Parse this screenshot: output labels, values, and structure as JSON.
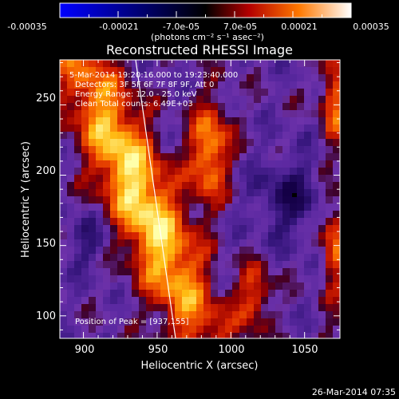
{
  "chart_data": {
    "type": "heatmap",
    "title": "Reconstructed RHESSI Image",
    "xlabel": "Heliocentric X (arcsec)",
    "ylabel": "Heliocentric Y (arcsec)",
    "xlim": [
      884,
      1074
    ],
    "ylim": [
      84,
      282
    ],
    "xticks": [
      "900",
      "950",
      "1000",
      "1050"
    ],
    "yticks": [
      "100",
      "150",
      "200",
      "250"
    ],
    "colorbar": {
      "ticks": [
        "-0.00035",
        "-0.00021",
        "-7.0e-05",
        "7.0e-05",
        "0.00021",
        "0.00035"
      ],
      "unit_label": "(photons cm⁻² s⁻¹ asec⁻²)",
      "range": [
        -0.00035,
        0.00035
      ]
    },
    "annotations": {
      "time": "5-Mar-2014 19:20:16.000 to 19:23:40.000",
      "detectors": "Detectors: 3F 5F 6F 7F 8F 9F, Att 0",
      "energy": "Energy Range: 12.0 - 25.0 keV",
      "clean": "Clean    Total counts: 6.49E+03",
      "peak": "Position of Peak = [937,155]"
    },
    "footer_date": "26-Mar-2014 07:35",
    "peak_xy": [
      937,
      155
    ],
    "minimum_xy": [
      1044,
      182
    ]
  }
}
